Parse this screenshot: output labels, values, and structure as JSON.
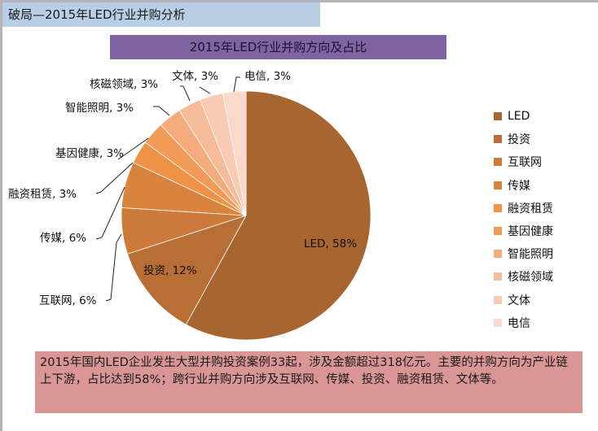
{
  "header": {
    "title": "破局—2015年LED行业并购分析"
  },
  "chart_title": "2015年LED行业并购方向及占比",
  "chart_data": {
    "type": "pie",
    "title": "2015年LED行业并购方向及占比",
    "categories": [
      "LED",
      "投资",
      "互联网",
      "传媒",
      "融资租赁",
      "基因健康",
      "智能照明",
      "核磁领域",
      "文体",
      "电信"
    ],
    "values": [
      58,
      12,
      6,
      6,
      3,
      3,
      3,
      3,
      3,
      3
    ],
    "unit": "%",
    "colors": [
      "#a8652f",
      "#b86e35",
      "#cb7a3a",
      "#d9843e",
      "#ee9247",
      "#f29a58",
      "#f4ac7e",
      "#f6bc9a",
      "#f8cbb3",
      "#fad9ca"
    ],
    "data_labels": [
      "LED, 58%",
      "投资, 12%",
      "互联网, 6%",
      "传媒, 6%",
      "融资租赁, 3%",
      "基因健康, 3%",
      "智能照明, 3%",
      "核磁领域, 3%",
      "文体, 3%",
      "电信, 3%"
    ],
    "start_angle_deg": 0,
    "direction": "clockwise",
    "legend_position": "right"
  },
  "legend": {
    "items": [
      {
        "label": "LED",
        "color": "#a8652f"
      },
      {
        "label": "投资",
        "color": "#b86e35"
      },
      {
        "label": "互联网",
        "color": "#cb7a3a"
      },
      {
        "label": "传媒",
        "color": "#d9843e"
      },
      {
        "label": "融资租赁",
        "color": "#ee9247"
      },
      {
        "label": "基因健康",
        "color": "#f29a58"
      },
      {
        "label": "智能照明",
        "color": "#f4ac7e"
      },
      {
        "label": "核磁领域",
        "color": "#f6bc9a"
      },
      {
        "label": "文体",
        "color": "#f8cbb3"
      },
      {
        "label": "电信",
        "color": "#fad9ca"
      }
    ]
  },
  "summary": {
    "text": "2015年国内LED企业发生大型并购投资案例33起，涉及金额超过318亿元。主要的并购方向为产业链上下游，占比达到58%；跨行业并购方向涉及互联网、传媒、投资、融资租赁、文体等。"
  },
  "colors": {
    "header_bg": "#b8cfe6",
    "title_bg": "#8064a2",
    "summary_bg": "#d99694"
  }
}
